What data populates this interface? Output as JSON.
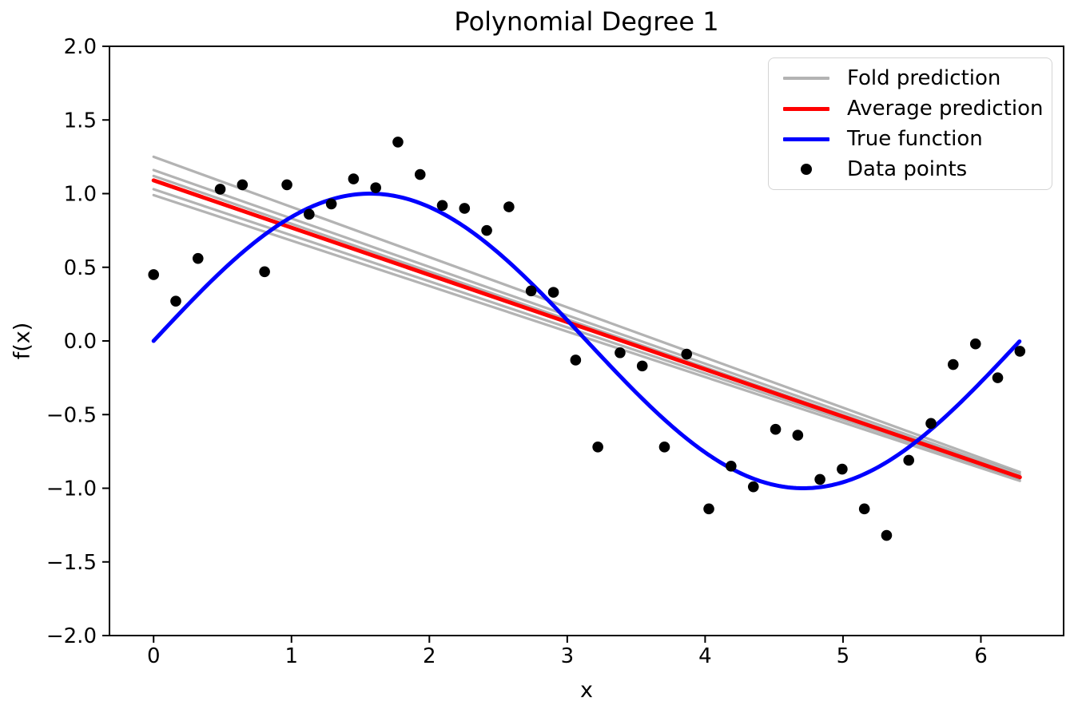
{
  "title": "Polynomial Degree 1",
  "axes": {
    "xlabel": "x",
    "ylabel": "f(x)",
    "xticks": {
      "values": [
        0,
        1,
        2,
        3,
        4,
        5,
        6
      ],
      "labels": [
        "0",
        "1",
        "2",
        "3",
        "4",
        "5",
        "6"
      ]
    },
    "yticks": {
      "values": [
        -2.0,
        -1.5,
        -1.0,
        -0.5,
        0.0,
        0.5,
        1.0,
        1.5,
        2.0
      ],
      "labels": [
        "−2.0",
        "−1.5",
        "−1.0",
        "−0.5",
        "0.0",
        "0.5",
        "1.0",
        "1.5",
        "2.0"
      ]
    }
  },
  "legend": {
    "items": [
      {
        "label": "Fold prediction",
        "type": "line",
        "color": "#b3b3b3"
      },
      {
        "label": "Average prediction",
        "type": "line",
        "color": "#ff0000"
      },
      {
        "label": "True function",
        "type": "line",
        "color": "#0000ff"
      },
      {
        "label": "Data points",
        "type": "marker",
        "color": "#000000"
      }
    ]
  },
  "chart_data": {
    "type": "line",
    "title": "Polynomial Degree 1",
    "xlabel": "x",
    "ylabel": "f(x)",
    "xlim": [
      -0.32,
      6.6
    ],
    "ylim": [
      -2.0,
      2.0
    ],
    "grid": false,
    "legend_position": "upper right",
    "series": [
      {
        "name": "Fold prediction",
        "type": "line",
        "color": "#808080",
        "alpha": 0.6,
        "x": [
          0,
          6.283
        ],
        "folds_y": [
          [
            1.25,
            -0.89
          ],
          [
            1.16,
            -0.905
          ],
          [
            1.12,
            -0.92
          ],
          [
            1.03,
            -0.935
          ],
          [
            0.99,
            -0.95
          ]
        ]
      },
      {
        "name": "Average prediction",
        "type": "line",
        "color": "#ff0000",
        "x": [
          0,
          6.283
        ],
        "y": [
          1.09,
          -0.925
        ]
      },
      {
        "name": "True function",
        "type": "line",
        "color": "#0000ff",
        "function": "sin",
        "x_range": [
          0,
          6.283
        ]
      },
      {
        "name": "Data points",
        "type": "scatter",
        "color": "#000000",
        "x": [
          0.0,
          0.161,
          0.322,
          0.483,
          0.644,
          0.805,
          0.967,
          1.128,
          1.289,
          1.45,
          1.611,
          1.772,
          1.933,
          2.094,
          2.255,
          2.416,
          2.577,
          2.738,
          2.9,
          3.061,
          3.222,
          3.383,
          3.544,
          3.705,
          3.866,
          4.027,
          4.188,
          4.35,
          4.511,
          4.672,
          4.833,
          4.994,
          5.155,
          5.316,
          5.477,
          5.638,
          5.799,
          5.961,
          6.122,
          6.283
        ],
        "y": [
          0.45,
          0.27,
          0.56,
          1.03,
          1.06,
          0.47,
          1.06,
          0.86,
          0.93,
          1.1,
          1.04,
          1.35,
          1.13,
          0.92,
          0.9,
          0.75,
          0.91,
          0.34,
          0.33,
          -0.13,
          -0.72,
          -0.08,
          -0.17,
          -0.72,
          -0.09,
          -1.14,
          -0.85,
          -0.99,
          -0.6,
          -0.64,
          -0.94,
          -0.87,
          -1.14,
          -1.32,
          -0.81,
          -0.56,
          -0.16,
          -0.02,
          -0.25,
          -0.07
        ]
      }
    ]
  }
}
